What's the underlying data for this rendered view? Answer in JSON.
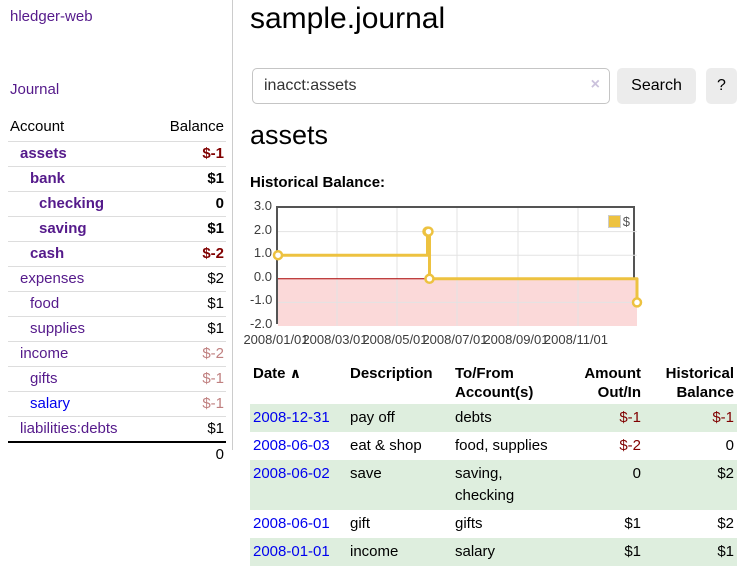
{
  "app": {
    "brand": "hledger-web"
  },
  "colors": {
    "link_purple": "#551a8b",
    "link_blue": "#0000ee",
    "negative": "#800000",
    "negative_dim": "#c08080",
    "row_stripe_green": "#deeede",
    "chart_series_gold": "#edc240",
    "chart_negative_region": "#fbd9d9",
    "chart_zero_line": "#aa0000",
    "button_bg": "#ececec"
  },
  "sidebar": {
    "nav_journal": "Journal",
    "accounts_table": {
      "headers": {
        "account": "Account",
        "balance": "Balance"
      },
      "rows": [
        {
          "name": "assets",
          "balance": "$-1"
        },
        {
          "name": "bank",
          "balance": "$1"
        },
        {
          "name": "checking",
          "balance": "0"
        },
        {
          "name": "saving",
          "balance": "$1"
        },
        {
          "name": "cash",
          "balance": "$-2"
        },
        {
          "name": "expenses",
          "balance": "$2"
        },
        {
          "name": "food",
          "balance": "$1"
        },
        {
          "name": "supplies",
          "balance": "$1"
        },
        {
          "name": "income",
          "balance": "$-2"
        },
        {
          "name": "gifts",
          "balance": "$-1"
        },
        {
          "name": "salary",
          "balance": "$-1"
        },
        {
          "name": "liabilities:debts",
          "balance": "$1"
        }
      ],
      "total": "0"
    }
  },
  "main": {
    "title": "sample.journal",
    "search": {
      "value": "inacct:assets",
      "clear_icon": "×",
      "button_label": "Search",
      "help_label": "?"
    },
    "account_heading": "assets",
    "chart_title": "Historical Balance:",
    "register": {
      "headers": {
        "date": "Date",
        "sort_icon": "∧",
        "description": "Description",
        "accounts": "To/From Account(s)",
        "amount": "Amount Out/In",
        "balance": "Historical Balance"
      },
      "rows": [
        {
          "date": "2008-12-31",
          "description": "pay off",
          "accounts": "debts",
          "amount": "$-1",
          "balance": "$-1"
        },
        {
          "date": "2008-06-03",
          "description": "eat & shop",
          "accounts": "food, supplies",
          "amount": "$-2",
          "balance": "0"
        },
        {
          "date": "2008-06-02",
          "description": "save",
          "accounts": "saving, checking",
          "amount": "0",
          "balance": "$2"
        },
        {
          "date": "2008-06-01",
          "description": "gift",
          "accounts": "gifts",
          "amount": "$1",
          "balance": "$2"
        },
        {
          "date": "2008-01-01",
          "description": "income",
          "accounts": "salary",
          "amount": "$1",
          "balance": "$1"
        }
      ]
    }
  },
  "chart_data": {
    "type": "line",
    "title": "Historical Balance",
    "steps": true,
    "series": [
      {
        "name": "$",
        "color": "#edc240",
        "points": [
          [
            "2008-01-01",
            1
          ],
          [
            "2008-06-01",
            2
          ],
          [
            "2008-06-02",
            2
          ],
          [
            "2008-06-03",
            0
          ],
          [
            "2008-12-31",
            -1
          ]
        ]
      }
    ],
    "x_ticks": [
      "2008/01/01",
      "2008/03/01",
      "2008/05/01",
      "2008/07/01",
      "2008/09/01",
      "2008/11/01"
    ],
    "y_ticks": [
      3.0,
      2.0,
      1.0,
      0.0,
      -1.0,
      -2.0
    ],
    "ylim": [
      -2,
      3
    ],
    "xlim": [
      "2008-01-01",
      "2008-12-31"
    ],
    "grid": true,
    "negative_region_color": "#fbd9d9",
    "zero_line_color": "#aa0000",
    "legend": {
      "label": "$",
      "position": "top-right"
    }
  }
}
